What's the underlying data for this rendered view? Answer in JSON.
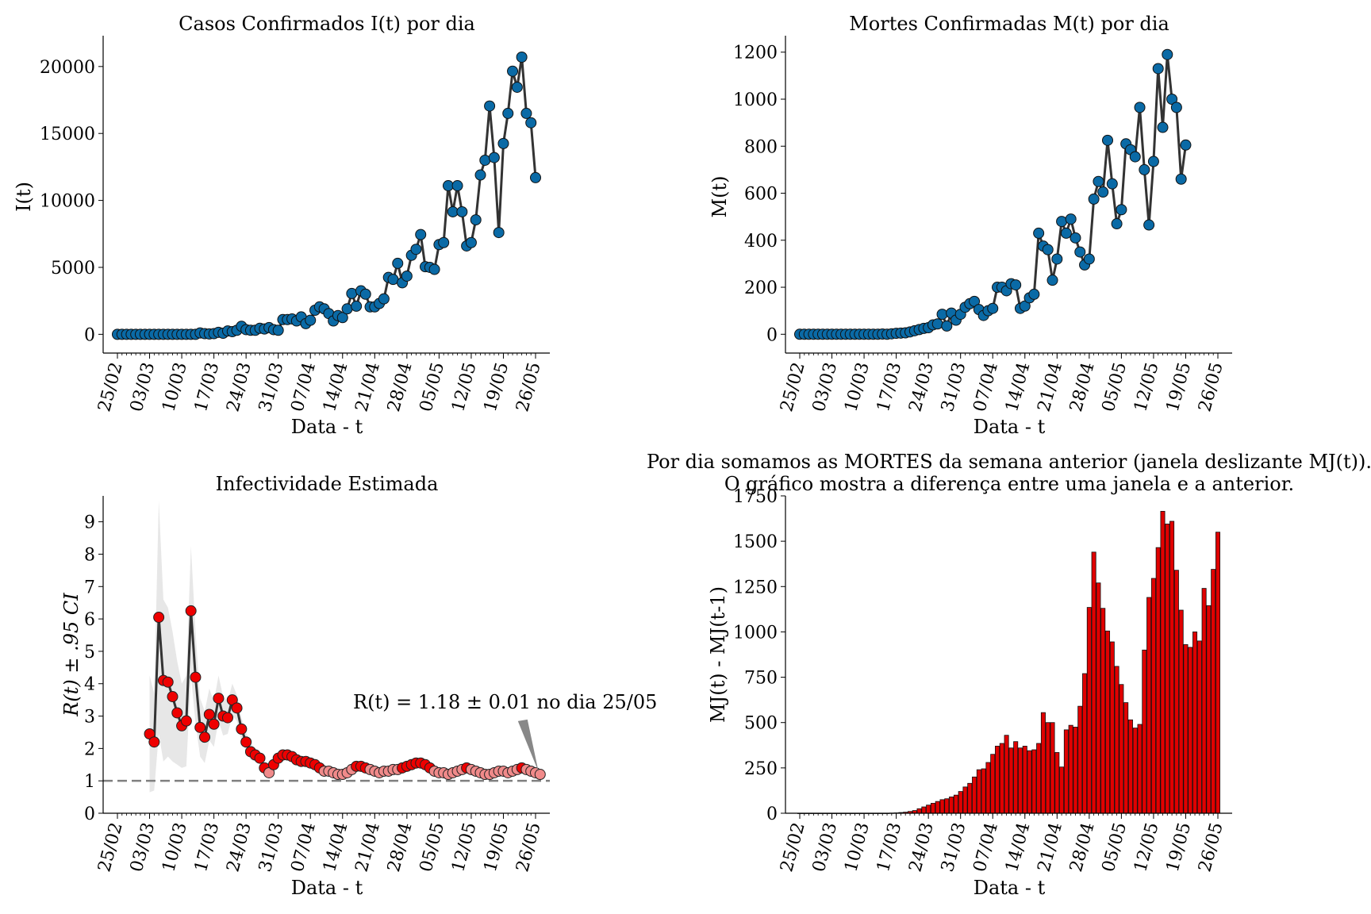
{
  "colors": {
    "marker_blue": "#0a6aa6",
    "line_dark": "#333333",
    "marker_red": "#ee0000",
    "marker_pink": "#f08a8a",
    "band_gray": "#dddddd",
    "bar_red": "#e00000",
    "dash_gray": "#808080"
  },
  "chart_data": [
    {
      "id": "cases",
      "type": "line",
      "title": "Casos Confirmados I(t) por dia",
      "xlabel": "Data - t",
      "ylabel": "I(t)",
      "x_start": "25/02",
      "x_ticks": [
        "25/02",
        "03/03",
        "10/03",
        "17/03",
        "24/03",
        "31/03",
        "07/04",
        "14/04",
        "21/04",
        "28/04",
        "05/05",
        "12/05",
        "19/05",
        "26/05"
      ],
      "ylim": [
        -1400,
        22300
      ],
      "y_ticks": [
        0,
        5000,
        10000,
        15000,
        20000
      ],
      "grid": false,
      "values": [
        0,
        0,
        0,
        0,
        0,
        0,
        0,
        0,
        0,
        0,
        0,
        0,
        0,
        0,
        0,
        0,
        0,
        0,
        100,
        50,
        30,
        50,
        150,
        80,
        250,
        200,
        300,
        600,
        350,
        300,
        300,
        450,
        400,
        500,
        350,
        300,
        1100,
        1100,
        1150,
        1000,
        1300,
        800,
        1050,
        1800,
        2050,
        1900,
        1550,
        1000,
        1400,
        1250,
        1900,
        3050,
        2100,
        3250,
        3000,
        2050,
        2050,
        2300,
        2650,
        4250,
        4100,
        5300,
        3850,
        4350,
        5900,
        6350,
        7450,
        5050,
        5000,
        4850,
        6700,
        6850,
        11100,
        9150,
        11100,
        9150,
        6600,
        6850,
        8550,
        11900,
        13000,
        17050,
        13200,
        7600,
        14250,
        16500,
        19650,
        18450,
        20700,
        16500,
        15800,
        11700
      ]
    },
    {
      "id": "deaths",
      "type": "line",
      "title": "Mortes Confirmadas M(t) por dia",
      "xlabel": "Data - t",
      "ylabel": "M(t)",
      "x_start": "25/02",
      "x_ticks": [
        "25/02",
        "03/03",
        "10/03",
        "17/03",
        "24/03",
        "31/03",
        "07/04",
        "14/04",
        "21/04",
        "28/04",
        "05/05",
        "12/05",
        "19/05",
        "26/05"
      ],
      "ylim": [
        -80,
        1270
      ],
      "y_ticks": [
        0,
        200,
        400,
        600,
        800,
        1000,
        1200
      ],
      "grid": false,
      "values": [
        0,
        0,
        0,
        0,
        0,
        0,
        0,
        0,
        0,
        0,
        0,
        0,
        0,
        0,
        0,
        0,
        0,
        0,
        1,
        0,
        2,
        4,
        5,
        6,
        10,
        15,
        20,
        25,
        28,
        40,
        44,
        85,
        35,
        90,
        60,
        85,
        115,
        130,
        140,
        105,
        80,
        100,
        110,
        200,
        200,
        185,
        215,
        210,
        110,
        120,
        155,
        170,
        430,
        375,
        360,
        230,
        320,
        480,
        430,
        490,
        410,
        350,
        295,
        320,
        575,
        650,
        605,
        825,
        640,
        470,
        530,
        810,
        785,
        755,
        965,
        700,
        465,
        735,
        1130,
        880,
        1190,
        1000,
        965,
        660,
        805
      ]
    },
    {
      "id": "rt",
      "type": "line",
      "title": "Infectividade Estimada",
      "xlabel": "Data - t",
      "ylabel": "R(t) ± .95 CI",
      "x_start": "25/02",
      "x_ticks": [
        "25/02",
        "03/03",
        "10/03",
        "17/03",
        "24/03",
        "31/03",
        "07/04",
        "14/04",
        "21/04",
        "28/04",
        "05/05",
        "12/05",
        "19/05",
        "26/05"
      ],
      "ylim": [
        0,
        9.8
      ],
      "y_ticks": [
        0,
        1,
        2,
        3,
        4,
        5,
        6,
        7,
        8,
        9
      ],
      "grid": false,
      "reference_line": 1,
      "rt_start_day": 7,
      "values": [
        2.45,
        2.2,
        6.05,
        4.1,
        4.05,
        3.6,
        3.1,
        2.7,
        2.85,
        6.25,
        4.2,
        2.65,
        2.35,
        3.05,
        2.75,
        3.55,
        3.0,
        2.95,
        3.5,
        3.25,
        2.6,
        2.2,
        1.9,
        1.8,
        1.7,
        1.4,
        1.25,
        1.5,
        1.7,
        1.8,
        1.8,
        1.75,
        1.65,
        1.6,
        1.6,
        1.55,
        1.5,
        1.4,
        1.3,
        1.3,
        1.25,
        1.2,
        1.2,
        1.25,
        1.35,
        1.45,
        1.45,
        1.4,
        1.35,
        1.3,
        1.25,
        1.3,
        1.3,
        1.35,
        1.35,
        1.4,
        1.45,
        1.5,
        1.55,
        1.55,
        1.5,
        1.4,
        1.3,
        1.25,
        1.25,
        1.2,
        1.25,
        1.3,
        1.35,
        1.4,
        1.35,
        1.3,
        1.25,
        1.2,
        1.2,
        1.25,
        1.3,
        1.3,
        1.25,
        1.3,
        1.35,
        1.4,
        1.35,
        1.3,
        1.25,
        1.2
      ],
      "ci_half": [
        1.8,
        1.5,
        3.6,
        2.5,
        2.3,
        2.0,
        1.6,
        1.3,
        1.4,
        2.0,
        1.4,
        0.9,
        0.8,
        0.8,
        0.7,
        0.7,
        0.6,
        0.5,
        0.5,
        0.4,
        0.35,
        0.3,
        0.25,
        0.2,
        0.15,
        0.12,
        0.1,
        0.1,
        0.08,
        0.06,
        0.06,
        0.05,
        0.05,
        0.04,
        0.04,
        0.04,
        0.04,
        0.03,
        0.03,
        0.03,
        0.03,
        0.03,
        0.03,
        0.02,
        0.02,
        0.02,
        0.02,
        0.02,
        0.02,
        0.02,
        0.02,
        0.02,
        0.02,
        0.02,
        0.02,
        0.02,
        0.02,
        0.02,
        0.02,
        0.02,
        0.02,
        0.02,
        0.02,
        0.02,
        0.02,
        0.02,
        0.02,
        0.02,
        0.02,
        0.02,
        0.02,
        0.02,
        0.02,
        0.02,
        0.02,
        0.02,
        0.02,
        0.02,
        0.02,
        0.02,
        0.02,
        0.02,
        0.02,
        0.02,
        0.02,
        0.01
      ],
      "annotation": {
        "text": "R(t) = 1.18 ± 0.01 no dia 25/05",
        "target_value": 1.18
      }
    },
    {
      "id": "window",
      "type": "bar",
      "title_line1": "Por dia somamos as MORTES da semana anterior (janela deslizante MJ(t)).",
      "title_line2": "O gráfico mostra a diferença entre uma janela e a anterior.",
      "xlabel": "Data - t",
      "ylabel": "MJ(t) - MJ(t-1)",
      "x_start": "25/02",
      "x_ticks": [
        "25/02",
        "03/03",
        "10/03",
        "17/03",
        "24/03",
        "31/03",
        "07/04",
        "14/04",
        "21/04",
        "28/04",
        "05/05",
        "12/05",
        "19/05",
        "26/05"
      ],
      "ylim": [
        0,
        1750
      ],
      "y_ticks": [
        0,
        250,
        500,
        750,
        1000,
        1250,
        1500,
        1750
      ],
      "grid": false,
      "values": [
        0,
        0,
        0,
        0,
        0,
        0,
        0,
        0,
        0,
        0,
        0,
        0,
        0,
        0,
        0,
        0,
        0,
        0,
        0,
        0,
        1,
        2,
        4,
        6,
        10,
        15,
        25,
        35,
        45,
        55,
        65,
        75,
        80,
        90,
        100,
        120,
        145,
        165,
        200,
        240,
        245,
        280,
        325,
        370,
        385,
        430,
        360,
        395,
        360,
        370,
        345,
        350,
        385,
        555,
        500,
        500,
        335,
        255,
        460,
        485,
        475,
        590,
        770,
        1135,
        1440,
        1270,
        1130,
        1005,
        945,
        810,
        710,
        610,
        515,
        470,
        490,
        900,
        1190,
        1295,
        1465,
        1665,
        1595,
        1610,
        1340,
        1120,
        930,
        915,
        1000,
        950,
        1240,
        1145,
        1345,
        1550
      ]
    }
  ]
}
